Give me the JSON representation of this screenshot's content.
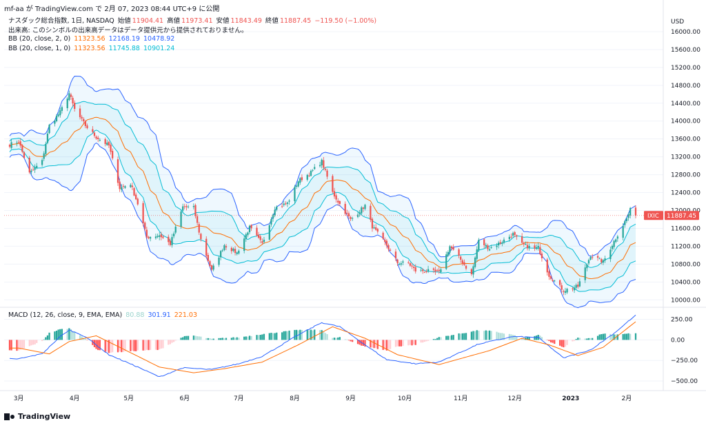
{
  "header": {
    "topline": "mf-aa が TradingView.com で 2月 07, 2023 08:44 UTC+9 に公開",
    "symbol": "ナスダック総合指数, 1日, NASDAQ",
    "open_label": "始値",
    "open": "11904.41",
    "high_label": "高値",
    "high": "11973.41",
    "low_label": "安値",
    "low": "11843.49",
    "close_label": "終値",
    "close": "11887.45",
    "change": "−119.50 (−1.00%)",
    "volume_note": "出来高: このシンボルの出来高データはデータ提供元から提供されておりません。"
  },
  "indicators": {
    "bb1": {
      "label": "BB (20, close, 2, 0)",
      "mid": "11323.56",
      "upper": "12168.19",
      "lower": "10478.92"
    },
    "bb2": {
      "label": "BB (20, close, 1, 0)",
      "mid": "11323.56",
      "upper": "11745.88",
      "lower": "10901.24"
    },
    "macd": {
      "label": "MACD (12, 26, close, 9, EMA, EMA)",
      "hist": "80.88",
      "macd": "301.91",
      "signal": "221.03"
    }
  },
  "price_axis": {
    "currency": "USD",
    "last_tag": "IXIC",
    "last_value": "11887.45"
  },
  "brand": "TradingView",
  "colors": {
    "up": "#26a69a",
    "down": "#ef5350",
    "bb_outer": "#2962ff",
    "bb_inner": "#00bcd4",
    "basis": "#ff6d00",
    "macd": "#2962ff",
    "signal": "#ff6d00"
  },
  "chart_data": {
    "type": "candlestick",
    "x_labels": [
      "3月",
      "4月",
      "5月",
      "6月",
      "7月",
      "8月",
      "9月",
      "10月",
      "11月",
      "12月",
      "2023",
      "2月"
    ],
    "price_ticks": [
      10000,
      10400,
      10800,
      11200,
      11600,
      12000,
      12400,
      12800,
      13200,
      13600,
      14000,
      14400,
      14800,
      15200,
      15600,
      16000
    ],
    "macd_ticks": [
      250,
      0,
      -250,
      -500
    ],
    "ylim_price": [
      9850,
      16400
    ],
    "ylim_macd": [
      -600,
      380
    ],
    "price_series": [
      [
        "2022-02-24",
        13473
      ],
      [
        "2022-03-01",
        13550
      ],
      [
        "2022-03-07",
        12830
      ],
      [
        "2022-03-14",
        13100
      ],
      [
        "2022-03-18",
        13900
      ],
      [
        "2022-03-24",
        14200
      ],
      [
        "2022-03-29",
        14620
      ],
      [
        "2022-04-01",
        14260
      ],
      [
        "2022-04-07",
        13900
      ],
      [
        "2022-04-13",
        13640
      ],
      [
        "2022-04-20",
        13450
      ],
      [
        "2022-04-26",
        12500
      ],
      [
        "2022-05-02",
        12600
      ],
      [
        "2022-05-06",
        12150
      ],
      [
        "2022-05-11",
        11400
      ],
      [
        "2022-05-18",
        11450
      ],
      [
        "2022-05-24",
        11250
      ],
      [
        "2022-05-31",
        12080
      ],
      [
        "2022-06-06",
        12060
      ],
      [
        "2022-06-10",
        11350
      ],
      [
        "2022-06-16",
        10650
      ],
      [
        "2022-06-23",
        11230
      ],
      [
        "2022-06-30",
        11050
      ],
      [
        "2022-07-07",
        11620
      ],
      [
        "2022-07-14",
        11250
      ],
      [
        "2022-07-21",
        12060
      ],
      [
        "2022-07-28",
        12160
      ],
      [
        "2022-08-03",
        12660
      ],
      [
        "2022-08-10",
        12850
      ],
      [
        "2022-08-16",
        13100
      ],
      [
        "2022-08-22",
        12400
      ],
      [
        "2022-08-26",
        12140
      ],
      [
        "2022-09-01",
        11790
      ],
      [
        "2022-09-09",
        12110
      ],
      [
        "2022-09-13",
        11640
      ],
      [
        "2022-09-21",
        11220
      ],
      [
        "2022-09-27",
        10830
      ],
      [
        "2022-10-03",
        10820
      ],
      [
        "2022-10-07",
        10650
      ],
      [
        "2022-10-13",
        10650
      ],
      [
        "2022-10-20",
        10610
      ],
      [
        "2022-10-26",
        11200
      ],
      [
        "2022-11-01",
        10900
      ],
      [
        "2022-11-07",
        10560
      ],
      [
        "2022-11-11",
        11320
      ],
      [
        "2022-11-17",
        11150
      ],
      [
        "2022-11-23",
        11280
      ],
      [
        "2022-11-30",
        11470
      ],
      [
        "2022-12-05",
        11240
      ],
      [
        "2022-12-12",
        11140
      ],
      [
        "2022-12-14",
        11170
      ],
      [
        "2022-12-20",
        10550
      ],
      [
        "2022-12-28",
        10210
      ],
      [
        "2023-01-05",
        10300
      ],
      [
        "2023-01-12",
        11000
      ],
      [
        "2023-01-19",
        10850
      ],
      [
        "2023-01-25",
        11310
      ],
      [
        "2023-02-01",
        11820
      ],
      [
        "2023-02-03",
        12010
      ],
      [
        "2023-02-06",
        11887
      ]
    ],
    "macd_series": [
      [
        "2022-03-01",
        -230
      ],
      [
        "2022-03-14",
        -170
      ],
      [
        "2022-03-24",
        40
      ],
      [
        "2022-03-29",
        120
      ],
      [
        "2022-04-07",
        40
      ],
      [
        "2022-04-20",
        -180
      ],
      [
        "2022-05-06",
        -330
      ],
      [
        "2022-05-18",
        -450
      ],
      [
        "2022-05-31",
        -340
      ],
      [
        "2022-06-16",
        -360
      ],
      [
        "2022-07-01",
        -290
      ],
      [
        "2022-07-14",
        -200
      ],
      [
        "2022-08-03",
        60
      ],
      [
        "2022-08-16",
        210
      ],
      [
        "2022-08-26",
        160
      ],
      [
        "2022-09-09",
        -60
      ],
      [
        "2022-09-21",
        -240
      ],
      [
        "2022-10-07",
        -290
      ],
      [
        "2022-10-20",
        -270
      ],
      [
        "2022-11-11",
        -50
      ],
      [
        "2022-11-30",
        40
      ],
      [
        "2022-12-14",
        30
      ],
      [
        "2022-12-28",
        -220
      ],
      [
        "2023-01-12",
        -120
      ],
      [
        "2023-01-25",
        80
      ],
      [
        "2023-02-06",
        302
      ]
    ],
    "signal_series": [
      [
        "2022-03-01",
        -100
      ],
      [
        "2022-03-18",
        -170
      ],
      [
        "2022-03-29",
        -20
      ],
      [
        "2022-04-13",
        50
      ],
      [
        "2022-04-26",
        -90
      ],
      [
        "2022-05-18",
        -330
      ],
      [
        "2022-06-06",
        -400
      ],
      [
        "2022-06-23",
        -350
      ],
      [
        "2022-07-14",
        -270
      ],
      [
        "2022-08-03",
        -60
      ],
      [
        "2022-08-22",
        160
      ],
      [
        "2022-09-09",
        20
      ],
      [
        "2022-09-27",
        -180
      ],
      [
        "2022-10-20",
        -300
      ],
      [
        "2022-11-17",
        -130
      ],
      [
        "2022-12-05",
        20
      ],
      [
        "2022-12-20",
        -60
      ],
      [
        "2023-01-05",
        -190
      ],
      [
        "2023-01-19",
        -90
      ],
      [
        "2023-02-06",
        221
      ]
    ],
    "last_price": 11887.45,
    "last_macd": {
      "macd": 301.91,
      "signal": 221.03,
      "hist": 80.88
    }
  }
}
